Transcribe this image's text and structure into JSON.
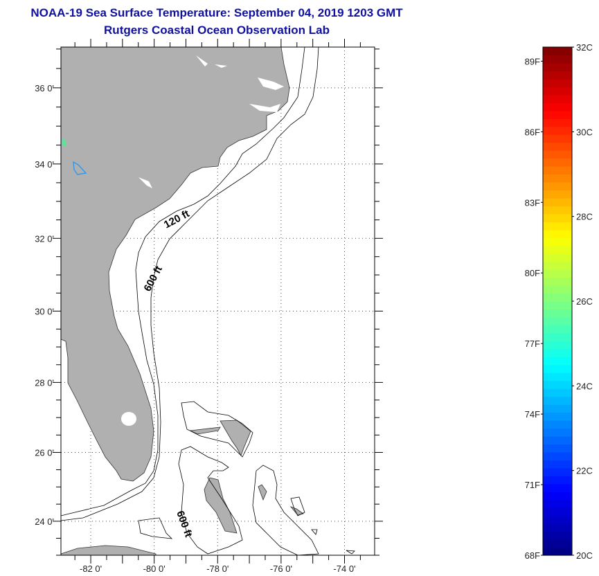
{
  "header": {
    "title": "NOAA-19 Sea Surface Temperature:  September 04, 2019 1203 GMT",
    "subtitle": "Rutgers Coastal Ocean Observation Lab"
  },
  "map": {
    "lon_range": [
      -82.94,
      -73.05
    ],
    "lat_range": [
      23.0,
      37.05
    ],
    "lon_ticks": [
      {
        "value": -82,
        "label": "-82 0'"
      },
      {
        "value": -80,
        "label": "-80 0'"
      },
      {
        "value": -78,
        "label": "-78 0'"
      },
      {
        "value": -76,
        "label": "-76 0'"
      },
      {
        "value": -74,
        "label": "-74 0'"
      }
    ],
    "lat_ticks": [
      {
        "value": 36,
        "label": "36 0'"
      },
      {
        "value": 34,
        "label": "34 0'"
      },
      {
        "value": 32,
        "label": "32 0'"
      },
      {
        "value": 30,
        "label": "30 0'"
      },
      {
        "value": 28,
        "label": "28 0'"
      },
      {
        "value": 26,
        "label": "26 0'"
      },
      {
        "value": 24,
        "label": "24 0'"
      }
    ],
    "contour_labels": [
      "120 ft",
      "600 ft",
      "600 ft"
    ],
    "land_color": "#b0b0b0"
  },
  "colorbar": {
    "min_c": 20,
    "max_c": 32,
    "celsius_labels": [
      {
        "value": 32,
        "label": "32C"
      },
      {
        "value": 30,
        "label": "30C"
      },
      {
        "value": 28,
        "label": "28C"
      },
      {
        "value": 26,
        "label": "26C"
      },
      {
        "value": 24,
        "label": "24C"
      },
      {
        "value": 22,
        "label": "22C"
      },
      {
        "value": 20,
        "label": "20C"
      }
    ],
    "fahrenheit_labels": [
      {
        "value": 89,
        "label": "89F"
      },
      {
        "value": 86,
        "label": "86F"
      },
      {
        "value": 83,
        "label": "83F"
      },
      {
        "value": 80,
        "label": "80F"
      },
      {
        "value": 77,
        "label": "77F"
      },
      {
        "value": 74,
        "label": "74F"
      },
      {
        "value": 71,
        "label": "71F"
      },
      {
        "value": 68,
        "label": "68F"
      }
    ]
  }
}
